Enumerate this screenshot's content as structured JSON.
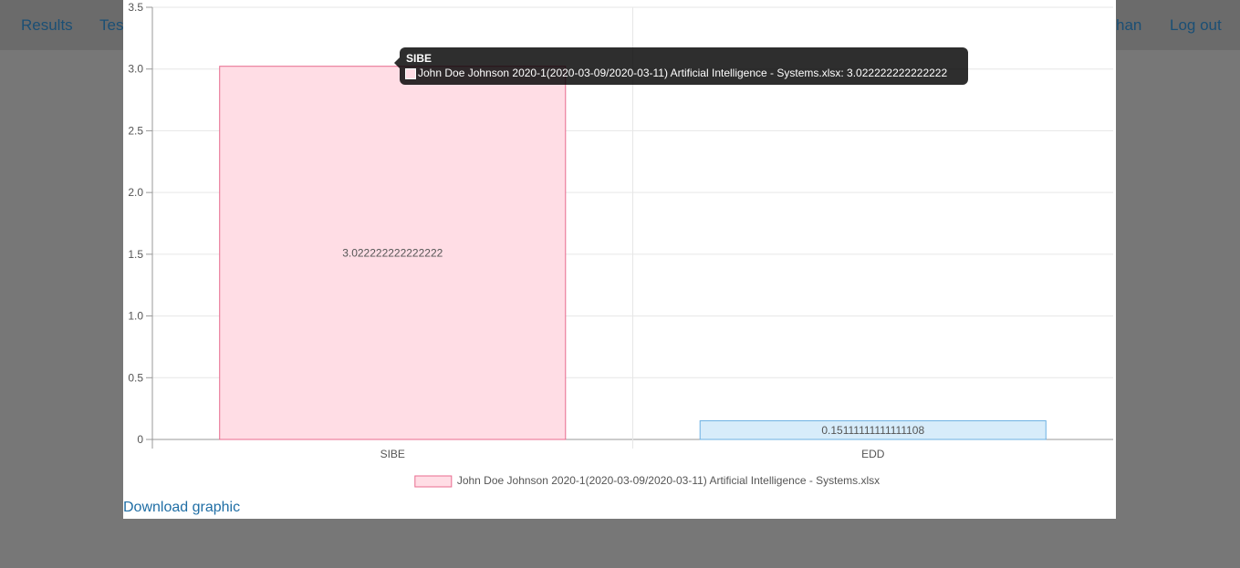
{
  "nav": {
    "left_items": [
      "Results",
      "Tests"
    ],
    "right_items": [
      "han",
      "Log out"
    ]
  },
  "modal": {
    "download_link": "Download graphic"
  },
  "tooltip": {
    "title": "SIBE",
    "body": "John Doe Johnson 2020-1(2020-03-09/2020-03-11) Artificial Intelligence - Systems.xlsx: 3.022222222222222"
  },
  "chart_data": {
    "type": "bar",
    "categories": [
      "SIBE",
      "EDD"
    ],
    "series": [
      {
        "name": "John Doe Johnson 2020-1(2020-03-09/2020-03-11) Artificial Intelligence - Systems.xlsx",
        "values": [
          3.022222222222222,
          0.15111111111111108
        ],
        "data_labels": [
          "3.022222222222222",
          "0.15111111111111108"
        ]
      }
    ],
    "ylim": [
      0,
      3.5
    ],
    "yticks": [
      "0",
      "0.5",
      "1.0",
      "1.5",
      "2.0",
      "2.5",
      "3.0",
      "3.5"
    ],
    "grid": true,
    "legend_position": "bottom",
    "colors": {
      "fills": [
        "#ffdde5",
        "#d7ecfa"
      ],
      "borders": [
        "#e86b8e",
        "#6db1e3"
      ]
    }
  }
}
